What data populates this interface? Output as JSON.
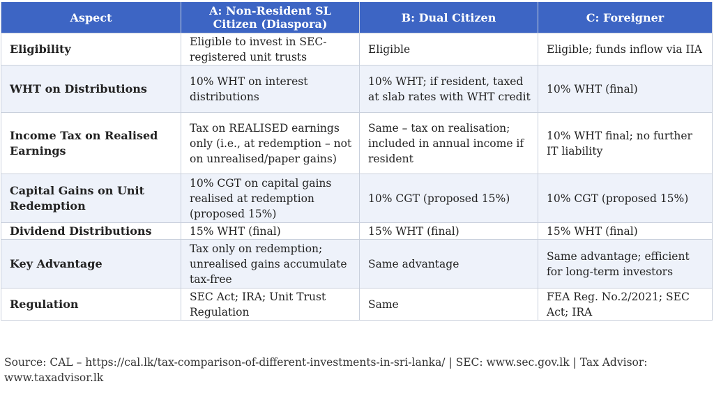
{
  "table": {
    "headers": [
      "Aspect",
      "A: Non-Resident SL Citizen (Diaspora)",
      "B: Dual Citizen",
      "C: Foreigner"
    ],
    "rows": [
      {
        "aspect": "Eligibility",
        "a": "Eligible to invest in SEC-registered unit trusts",
        "b": "Eligible",
        "c": "Eligible; funds inflow via IIA"
      },
      {
        "aspect": "WHT on Distributions",
        "a": "10% WHT on interest distributions",
        "b": "10% WHT; if resident, taxed at slab rates with WHT credit",
        "c": "10% WHT (final)"
      },
      {
        "aspect": "Income Tax on Realised Earnings",
        "a": "Tax on REALISED earnings only (i.e., at redemption – not on unrealised/paper gains)",
        "b": "Same – tax on realisation; included in annual income if resident",
        "c": "10% WHT final; no further IT liability"
      },
      {
        "aspect": "Capital Gains on Unit Redemption",
        "a": "10% CGT on capital gains realised at redemption (proposed 15%)",
        "b": "10% CGT (proposed 15%)",
        "c": "10% CGT (proposed 15%)"
      },
      {
        "aspect": "Dividend Distributions",
        "a": "15% WHT (final)",
        "b": "15% WHT (final)",
        "c": "15% WHT (final)"
      },
      {
        "aspect": "Key Advantage",
        "a": "Tax only on redemption; unrealised gains accumulate tax-free",
        "b": "Same advantage",
        "c": "Same advantage; efficient for long-term investors"
      },
      {
        "aspect": "Regulation",
        "a": "SEC Act; IRA; Unit Trust Regulation",
        "b": "Same",
        "c": "FEA Reg. No.2/2021; SEC Act; IRA"
      }
    ]
  },
  "footer": {
    "source": "Source: CAL – https://cal.lk/tax-comparison-of-different-investments-in-sri-lanka/ | SEC: www.sec.gov.lk | Tax Advisor: www.taxadvisor.lk"
  },
  "colors": {
    "header_bg": "#3d65c4",
    "header_text": "#ffffff",
    "row_alt_bg": "#eef2fa",
    "border": "#c9d0dc"
  }
}
